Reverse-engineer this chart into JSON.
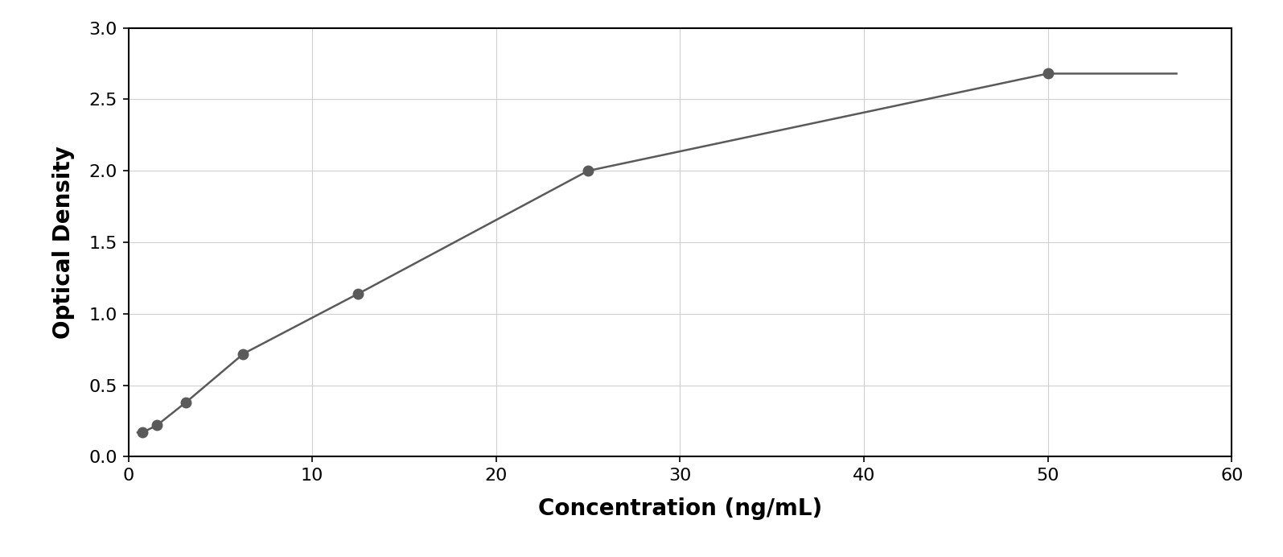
{
  "x_data": [
    0.78,
    1.56,
    3.13,
    6.25,
    12.5,
    25.0,
    50.0
  ],
  "y_data": [
    0.17,
    0.22,
    0.38,
    0.72,
    1.14,
    2.0,
    2.68
  ],
  "xlabel": "Concentration (ng/mL)",
  "ylabel": "Optical Density",
  "xlim": [
    0,
    60
  ],
  "ylim": [
    0,
    3
  ],
  "xticks": [
    0,
    10,
    20,
    30,
    40,
    50,
    60
  ],
  "yticks": [
    0,
    0.5,
    1.0,
    1.5,
    2.0,
    2.5,
    3.0
  ],
  "data_color": "#5a5a5a",
  "line_color": "#5a5a5a",
  "plot_background": "#ffffff",
  "outer_background": "#ffffff",
  "marker_size": 9,
  "line_width": 1.8,
  "xlabel_fontsize": 20,
  "ylabel_fontsize": 20,
  "tick_fontsize": 16,
  "xlabel_fontweight": "bold",
  "ylabel_fontweight": "bold"
}
